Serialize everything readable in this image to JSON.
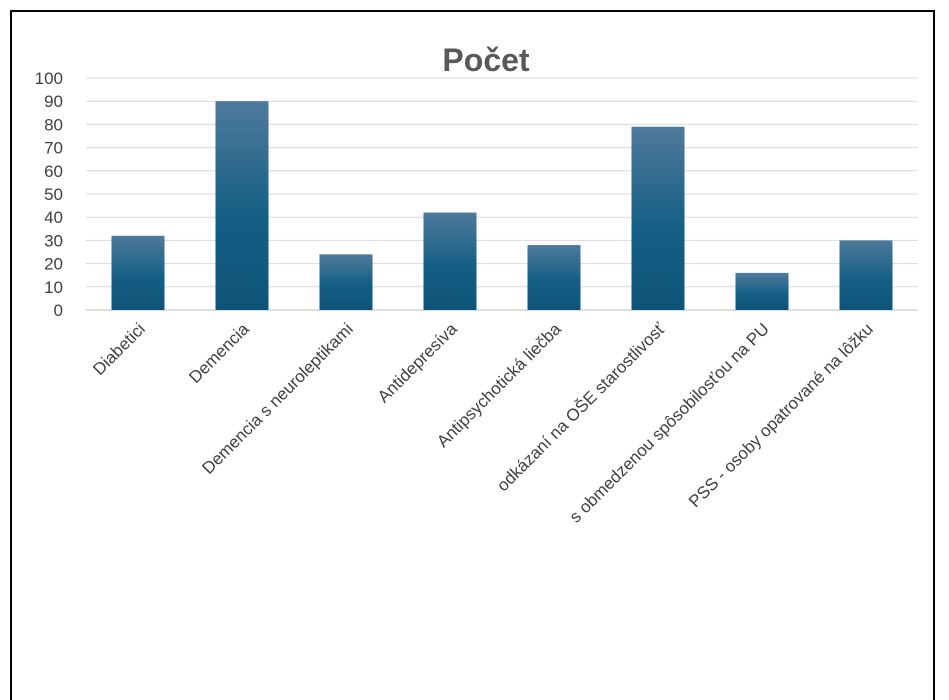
{
  "chart_data": {
    "type": "bar",
    "title": "Počet",
    "categories": [
      "Diabetici",
      "Demencia",
      "Demencia s neuroleptikami",
      "Antidepresíva",
      "Antipsychotická liečba",
      "odkázaní na OŠE starostlivosť",
      "s obmedzenou spôsobilosťou na PU",
      "PSS - osoby opatrované na lôžku"
    ],
    "values": [
      32,
      90,
      24,
      42,
      28,
      79,
      16,
      30
    ],
    "ylim": [
      0,
      100
    ],
    "yticks": [
      "0",
      "10",
      "20",
      "30",
      "40",
      "50",
      "60",
      "70",
      "80",
      "90",
      "100"
    ],
    "grid": true,
    "legend": "none",
    "colors": {
      "bar_top": "#4f7a9c",
      "bar_bottom": "#0e5478",
      "grid": "#d9d9d9",
      "text": "#404040"
    }
  }
}
